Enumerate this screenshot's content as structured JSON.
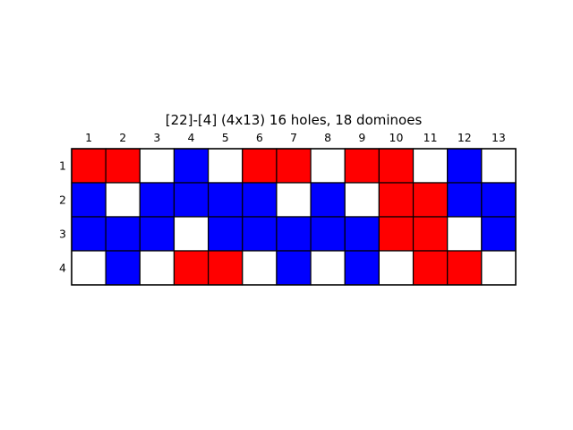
{
  "figure": {
    "title": "[22]-[4]  (4x13) 16 holes, 18 dominoes"
  },
  "colors": {
    "R": "#ff0000",
    "B": "#0000ff",
    "W": "#ffffff",
    "grid": "#000000"
  },
  "grid": {
    "rows": 4,
    "cols": 13,
    "col_labels": [
      "1",
      "2",
      "3",
      "4",
      "5",
      "6",
      "7",
      "8",
      "9",
      "10",
      "11",
      "12",
      "13"
    ],
    "row_labels": [
      "1",
      "2",
      "3",
      "4"
    ],
    "cells": [
      [
        "R",
        "R",
        "W",
        "B",
        "W",
        "R",
        "R",
        "W",
        "R",
        "R",
        "W",
        "B",
        "W"
      ],
      [
        "B",
        "W",
        "B",
        "B",
        "B",
        "B",
        "W",
        "B",
        "W",
        "R",
        "R",
        "B",
        "B"
      ],
      [
        "B",
        "B",
        "B",
        "W",
        "B",
        "B",
        "B",
        "B",
        "B",
        "R",
        "R",
        "W",
        "B"
      ],
      [
        "W",
        "B",
        "W",
        "R",
        "R",
        "W",
        "B",
        "W",
        "B",
        "W",
        "R",
        "R",
        "W"
      ]
    ]
  }
}
